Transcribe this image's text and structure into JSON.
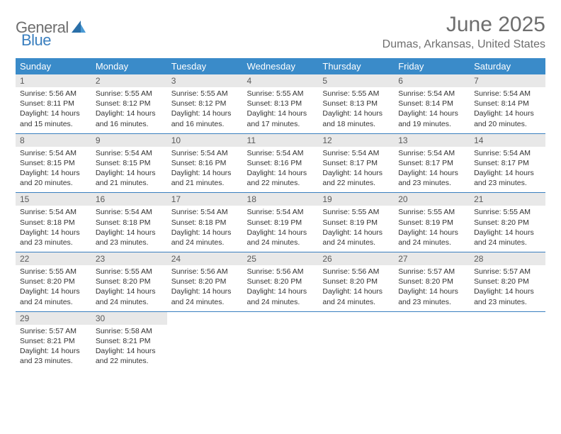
{
  "logo": {
    "part1": "General",
    "part2": "Blue"
  },
  "title": "June 2025",
  "location": "Dumas, Arkansas, United States",
  "colors": {
    "header_bg": "#3a8bc9",
    "header_text": "#ffffff",
    "daynum_bg": "#e8e8e8",
    "border": "#3a7fbf",
    "title_color": "#6e6e6e",
    "body_text": "#333333",
    "logo_gray": "#6e6e6e",
    "logo_blue": "#3a7fbf"
  },
  "weekdays": [
    "Sunday",
    "Monday",
    "Tuesday",
    "Wednesday",
    "Thursday",
    "Friday",
    "Saturday"
  ],
  "weeks": [
    [
      {
        "n": "1",
        "sr": "5:56 AM",
        "ss": "8:11 PM",
        "dh": "14",
        "dm": "15"
      },
      {
        "n": "2",
        "sr": "5:55 AM",
        "ss": "8:12 PM",
        "dh": "14",
        "dm": "16"
      },
      {
        "n": "3",
        "sr": "5:55 AM",
        "ss": "8:12 PM",
        "dh": "14",
        "dm": "16"
      },
      {
        "n": "4",
        "sr": "5:55 AM",
        "ss": "8:13 PM",
        "dh": "14",
        "dm": "17"
      },
      {
        "n": "5",
        "sr": "5:55 AM",
        "ss": "8:13 PM",
        "dh": "14",
        "dm": "18"
      },
      {
        "n": "6",
        "sr": "5:54 AM",
        "ss": "8:14 PM",
        "dh": "14",
        "dm": "19"
      },
      {
        "n": "7",
        "sr": "5:54 AM",
        "ss": "8:14 PM",
        "dh": "14",
        "dm": "20"
      }
    ],
    [
      {
        "n": "8",
        "sr": "5:54 AM",
        "ss": "8:15 PM",
        "dh": "14",
        "dm": "20"
      },
      {
        "n": "9",
        "sr": "5:54 AM",
        "ss": "8:15 PM",
        "dh": "14",
        "dm": "21"
      },
      {
        "n": "10",
        "sr": "5:54 AM",
        "ss": "8:16 PM",
        "dh": "14",
        "dm": "21"
      },
      {
        "n": "11",
        "sr": "5:54 AM",
        "ss": "8:16 PM",
        "dh": "14",
        "dm": "22"
      },
      {
        "n": "12",
        "sr": "5:54 AM",
        "ss": "8:17 PM",
        "dh": "14",
        "dm": "22"
      },
      {
        "n": "13",
        "sr": "5:54 AM",
        "ss": "8:17 PM",
        "dh": "14",
        "dm": "23"
      },
      {
        "n": "14",
        "sr": "5:54 AM",
        "ss": "8:17 PM",
        "dh": "14",
        "dm": "23"
      }
    ],
    [
      {
        "n": "15",
        "sr": "5:54 AM",
        "ss": "8:18 PM",
        "dh": "14",
        "dm": "23"
      },
      {
        "n": "16",
        "sr": "5:54 AM",
        "ss": "8:18 PM",
        "dh": "14",
        "dm": "23"
      },
      {
        "n": "17",
        "sr": "5:54 AM",
        "ss": "8:18 PM",
        "dh": "14",
        "dm": "24"
      },
      {
        "n": "18",
        "sr": "5:54 AM",
        "ss": "8:19 PM",
        "dh": "14",
        "dm": "24"
      },
      {
        "n": "19",
        "sr": "5:55 AM",
        "ss": "8:19 PM",
        "dh": "14",
        "dm": "24"
      },
      {
        "n": "20",
        "sr": "5:55 AM",
        "ss": "8:19 PM",
        "dh": "14",
        "dm": "24"
      },
      {
        "n": "21",
        "sr": "5:55 AM",
        "ss": "8:20 PM",
        "dh": "14",
        "dm": "24"
      }
    ],
    [
      {
        "n": "22",
        "sr": "5:55 AM",
        "ss": "8:20 PM",
        "dh": "14",
        "dm": "24"
      },
      {
        "n": "23",
        "sr": "5:55 AM",
        "ss": "8:20 PM",
        "dh": "14",
        "dm": "24"
      },
      {
        "n": "24",
        "sr": "5:56 AM",
        "ss": "8:20 PM",
        "dh": "14",
        "dm": "24"
      },
      {
        "n": "25",
        "sr": "5:56 AM",
        "ss": "8:20 PM",
        "dh": "14",
        "dm": "24"
      },
      {
        "n": "26",
        "sr": "5:56 AM",
        "ss": "8:20 PM",
        "dh": "14",
        "dm": "24"
      },
      {
        "n": "27",
        "sr": "5:57 AM",
        "ss": "8:20 PM",
        "dh": "14",
        "dm": "23"
      },
      {
        "n": "28",
        "sr": "5:57 AM",
        "ss": "8:20 PM",
        "dh": "14",
        "dm": "23"
      }
    ],
    [
      {
        "n": "29",
        "sr": "5:57 AM",
        "ss": "8:21 PM",
        "dh": "14",
        "dm": "23"
      },
      {
        "n": "30",
        "sr": "5:58 AM",
        "ss": "8:21 PM",
        "dh": "14",
        "dm": "22"
      },
      null,
      null,
      null,
      null,
      null
    ]
  ]
}
